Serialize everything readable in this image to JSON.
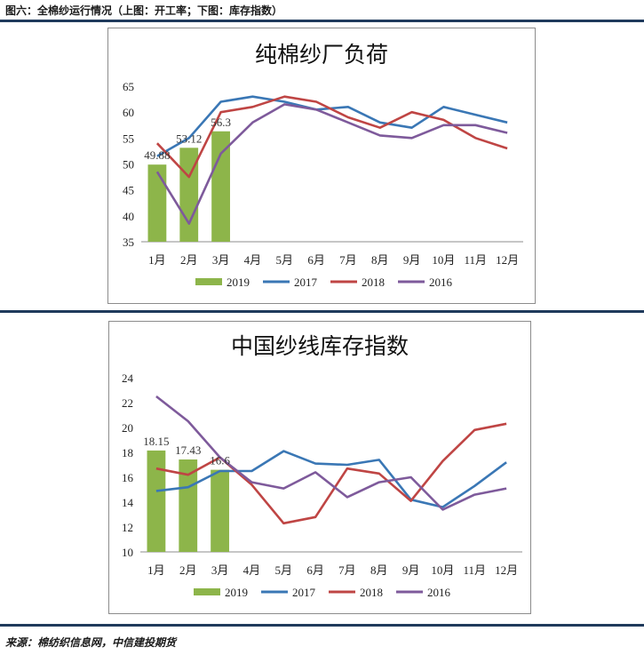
{
  "figure_caption": "图六：全棉纱运行情况（上图：开工率；下图：库存指数）",
  "source": "来源：棉纺织信息网，中信建投期货",
  "chart_data": [
    {
      "type": "bar+line",
      "title": "纯棉纱厂负荷",
      "categories": [
        "1月",
        "2月",
        "3月",
        "4月",
        "5月",
        "6月",
        "7月",
        "8月",
        "9月",
        "10月",
        "11月",
        "12月"
      ],
      "ylim": [
        35,
        65
      ],
      "yticks": [
        "35",
        "40",
        "45",
        "50",
        "55",
        "60",
        "65"
      ],
      "bar_series": {
        "name": "2019",
        "values": [
          49.88,
          53.12,
          56.3
        ],
        "labels": [
          "49.88",
          "53.12",
          "56.3"
        ],
        "color": "#8db54a"
      },
      "line_series": [
        {
          "name": "2017",
          "color": "#3a77b5",
          "values": [
            51.5,
            55,
            62,
            63,
            62,
            60.5,
            61,
            58,
            57,
            61,
            59.5,
            58
          ]
        },
        {
          "name": "2018",
          "color": "#bf4544",
          "values": [
            54,
            47.5,
            60,
            61,
            63,
            62,
            59,
            57,
            60,
            58.5,
            55,
            53
          ]
        },
        {
          "name": "2016",
          "color": "#7e5a9b",
          "values": [
            48.5,
            38.5,
            52,
            58,
            61.5,
            60.5,
            58,
            55.5,
            55,
            57.5,
            57.5,
            56
          ]
        }
      ],
      "legend": [
        "2019",
        "2017",
        "2018",
        "2016"
      ],
      "legend_position": "bottom",
      "grid": false
    },
    {
      "type": "bar+line",
      "title": "中国纱线库存指数",
      "categories": [
        "1月",
        "2月",
        "3月",
        "4月",
        "5月",
        "6月",
        "7月",
        "8月",
        "9月",
        "10月",
        "11月",
        "12月"
      ],
      "ylim": [
        10,
        24
      ],
      "yticks": [
        "10",
        "12",
        "14",
        "16",
        "18",
        "20",
        "22",
        "24"
      ],
      "bar_series": {
        "name": "2019",
        "values": [
          18.15,
          17.43,
          16.6
        ],
        "labels": [
          "18.15",
          "17.43",
          "16.6"
        ],
        "color": "#8db54a"
      },
      "line_series": [
        {
          "name": "2017",
          "color": "#3a77b5",
          "values": [
            14.9,
            15.2,
            16.5,
            16.5,
            18.1,
            17.1,
            17,
            17.4,
            14.2,
            13.6,
            15.3,
            17.2
          ]
        },
        {
          "name": "2018",
          "color": "#bf4544",
          "values": [
            16.7,
            16.2,
            17.6,
            15.4,
            12.3,
            12.8,
            16.7,
            16.3,
            14.1,
            17.3,
            19.8,
            20.3
          ]
        },
        {
          "name": "2016",
          "color": "#7e5a9b",
          "values": [
            22.5,
            20.5,
            17.6,
            15.6,
            15.1,
            16.4,
            14.4,
            15.6,
            16,
            13.4,
            14.6,
            15.1
          ]
        }
      ],
      "legend": [
        "2019",
        "2017",
        "2018",
        "2016"
      ],
      "legend_position": "bottom",
      "grid": false
    }
  ]
}
